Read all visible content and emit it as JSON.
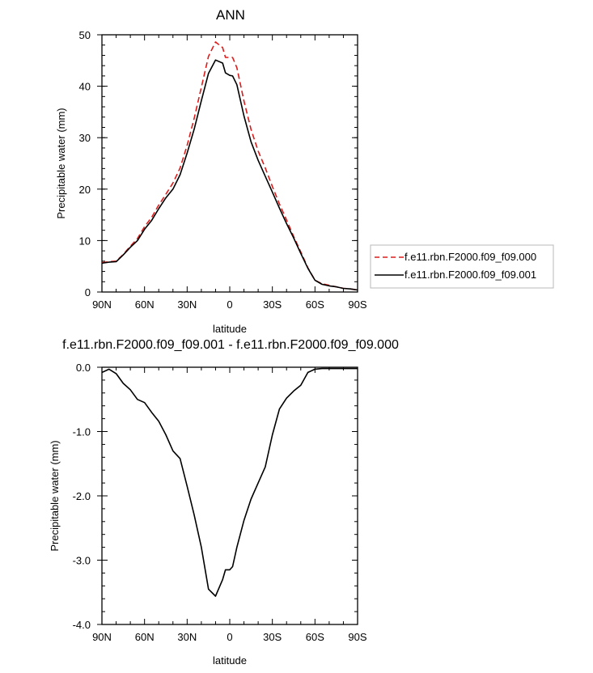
{
  "chart_data": [
    {
      "type": "line",
      "title": "ANN",
      "xlabel": "latitude",
      "ylabel": "Precipitable water (mm)",
      "xlim": [
        90,
        -90
      ],
      "ylim": [
        0,
        50
      ],
      "x_ticks": [
        90,
        60,
        30,
        0,
        -30,
        -60,
        -90
      ],
      "x_tick_labels": [
        "90N",
        "60N",
        "30N",
        "0",
        "30S",
        "60S",
        "90S"
      ],
      "y_ticks": [
        0,
        10,
        20,
        30,
        40,
        50
      ],
      "y_tick_labels": [
        "0",
        "10",
        "20",
        "30",
        "40",
        "50"
      ],
      "legend_position": "right",
      "series": [
        {
          "name": "f.e11.rbn.F2000.f09_f09.000",
          "color": "#dd1c1c",
          "dash": "dashed",
          "x": [
            90,
            85,
            80,
            75,
            70,
            65,
            60,
            55,
            50,
            45,
            40,
            35,
            30,
            25,
            20,
            15,
            10,
            5,
            3,
            0,
            -2,
            -5,
            -10,
            -15,
            -20,
            -25,
            -30,
            -35,
            -40,
            -45,
            -50,
            -55,
            -60,
            -65,
            -70,
            -75,
            -80,
            -85,
            -90
          ],
          "values": [
            5.7,
            5.9,
            6.0,
            7.3,
            8.9,
            10.4,
            12.7,
            14.5,
            16.9,
            19.0,
            21.2,
            24.1,
            28.5,
            33.8,
            39.8,
            45.8,
            48.6,
            47.5,
            45.6,
            45.6,
            45.6,
            43.6,
            37.1,
            31.6,
            27.4,
            24.1,
            20.5,
            17.1,
            14.0,
            10.8,
            7.8,
            4.7,
            2.3,
            1.6,
            1.3,
            1.0,
            0.7,
            0.6,
            0.4
          ]
        },
        {
          "name": "f.e11.rbn.F2000.f09_f09.001",
          "color": "#000000",
          "dash": "solid",
          "x": [
            90,
            85,
            80,
            75,
            70,
            65,
            60,
            55,
            50,
            45,
            40,
            35,
            30,
            25,
            20,
            15,
            10,
            5,
            3,
            0,
            -2,
            -5,
            -10,
            -15,
            -20,
            -25,
            -30,
            -35,
            -40,
            -45,
            -50,
            -55,
            -60,
            -65,
            -70,
            -75,
            -80,
            -85,
            -90
          ],
          "values": [
            5.6,
            5.8,
            5.9,
            7.2,
            8.7,
            10.0,
            12.2,
            13.9,
            16.2,
            18.3,
            20.0,
            22.8,
            27.0,
            31.7,
            37.2,
            42.5,
            45.1,
            44.5,
            42.6,
            42.1,
            42.0,
            40.3,
            34.2,
            29.2,
            25.6,
            22.5,
            19.4,
            16.3,
            13.3,
            10.5,
            7.5,
            4.6,
            2.3,
            1.5,
            1.2,
            1.0,
            0.7,
            0.6,
            0.4
          ]
        }
      ]
    },
    {
      "type": "line",
      "title": "f.e11.rbn.F2000.f09_f09.001 - f.e11.rbn.F2000.f09_f09.000",
      "xlabel": "latitude",
      "ylabel": "Precipitable water (mm)",
      "xlim": [
        90,
        -90
      ],
      "ylim": [
        -4.0,
        0.0
      ],
      "x_ticks": [
        90,
        60,
        30,
        0,
        -30,
        -60,
        -90
      ],
      "x_tick_labels": [
        "90N",
        "60N",
        "30N",
        "0",
        "30S",
        "60S",
        "90S"
      ],
      "y_ticks": [
        0.0,
        -1.0,
        -2.0,
        -3.0,
        -4.0
      ],
      "y_tick_labels": [
        "0.0",
        "-1.0",
        "-2.0",
        "-3.0",
        "-4.0"
      ],
      "series": [
        {
          "color": "#000000",
          "dash": "solid",
          "x": [
            90,
            85,
            80,
            75,
            70,
            65,
            60,
            55,
            50,
            45,
            40,
            35,
            30,
            25,
            20,
            15,
            10,
            5,
            3,
            0,
            -2,
            -5,
            -10,
            -15,
            -20,
            -25,
            -30,
            -35,
            -40,
            -45,
            -50,
            -55,
            -60,
            -65,
            -70,
            -75,
            -80,
            -85,
            -90
          ],
          "values": [
            -0.08,
            -0.03,
            -0.1,
            -0.25,
            -0.35,
            -0.5,
            -0.55,
            -0.7,
            -0.84,
            -1.05,
            -1.3,
            -1.42,
            -1.85,
            -2.3,
            -2.8,
            -3.45,
            -3.56,
            -3.3,
            -3.15,
            -3.15,
            -3.1,
            -2.8,
            -2.38,
            -2.05,
            -1.8,
            -1.55,
            -1.05,
            -0.65,
            -0.48,
            -0.37,
            -0.28,
            -0.08,
            -0.03,
            -0.02,
            -0.02,
            -0.02,
            -0.02,
            -0.02,
            -0.02
          ]
        }
      ]
    }
  ]
}
